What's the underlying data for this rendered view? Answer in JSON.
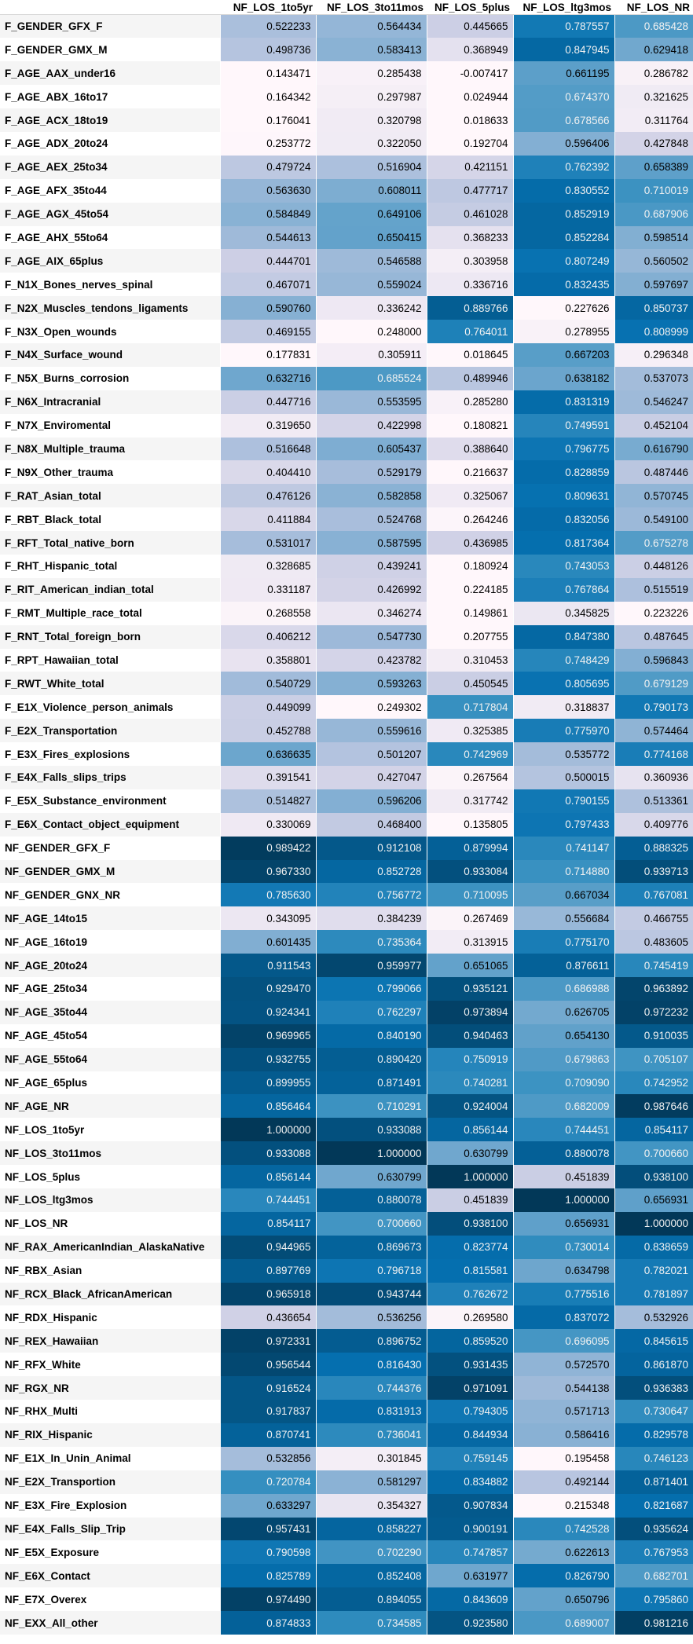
{
  "table": {
    "index_header": "",
    "columns": [
      "NF_LOS_1to5yr",
      "NF_LOS_3to11mos",
      "NF_LOS_5plus",
      "NF_LOS_ltg3mos",
      "NF_LOS_NR"
    ],
    "colormap": {
      "low": "#fff7fb",
      "high": "#023858",
      "vmin": 0.25,
      "vmax": 1.0
    },
    "rows": [
      {
        "label": "F_GENDER_GFX_F",
        "values": [
          "0.522233",
          "0.564434",
          "0.445665",
          "0.787557",
          "0.685428"
        ]
      },
      {
        "label": "F_GENDER_GMX_M",
        "values": [
          "0.498736",
          "0.583413",
          "0.368949",
          "0.847945",
          "0.629418"
        ]
      },
      {
        "label": "F_AGE_AAX_under16",
        "values": [
          "0.143471",
          "0.285438",
          "-0.007417",
          "0.661195",
          "0.286782"
        ]
      },
      {
        "label": "F_AGE_ABX_16to17",
        "values": [
          "0.164342",
          "0.297987",
          "0.024944",
          "0.674370",
          "0.321625"
        ]
      },
      {
        "label": "F_AGE_ACX_18to19",
        "values": [
          "0.176041",
          "0.320798",
          "0.018633",
          "0.678566",
          "0.311764"
        ]
      },
      {
        "label": "F_AGE_ADX_20to24",
        "values": [
          "0.253772",
          "0.322050",
          "0.192704",
          "0.596406",
          "0.427848"
        ]
      },
      {
        "label": "F_AGE_AEX_25to34",
        "values": [
          "0.479724",
          "0.516904",
          "0.421151",
          "0.762392",
          "0.658389"
        ]
      },
      {
        "label": "F_AGE_AFX_35to44",
        "values": [
          "0.563630",
          "0.608011",
          "0.477717",
          "0.830552",
          "0.710019"
        ]
      },
      {
        "label": "F_AGE_AGX_45to54",
        "values": [
          "0.584849",
          "0.649106",
          "0.461028",
          "0.852919",
          "0.687906"
        ]
      },
      {
        "label": "F_AGE_AHX_55to64",
        "values": [
          "0.544613",
          "0.650415",
          "0.368233",
          "0.852284",
          "0.598514"
        ]
      },
      {
        "label": "F_AGE_AIX_65plus",
        "values": [
          "0.444701",
          "0.546588",
          "0.303958",
          "0.807249",
          "0.560502"
        ]
      },
      {
        "label": "F_N1X_Bones_nerves_spinal",
        "values": [
          "0.467071",
          "0.559024",
          "0.336716",
          "0.832435",
          "0.597697"
        ]
      },
      {
        "label": "F_N2X_Muscles_tendons_ligaments",
        "values": [
          "0.590760",
          "0.336242",
          "0.889766",
          "0.227626",
          "0.850737"
        ]
      },
      {
        "label": "F_N3X_Open_wounds",
        "values": [
          "0.469155",
          "0.248000",
          "0.764011",
          "0.278955",
          "0.808999"
        ]
      },
      {
        "label": "F_N4X_Surface_wound",
        "values": [
          "0.177831",
          "0.305911",
          "0.018645",
          "0.667203",
          "0.296348"
        ]
      },
      {
        "label": "F_N5X_Burns_corrosion",
        "values": [
          "0.632716",
          "0.685524",
          "0.489946",
          "0.638182",
          "0.537073"
        ]
      },
      {
        "label": "F_N6X_Intracranial",
        "values": [
          "0.447716",
          "0.553595",
          "0.285280",
          "0.831319",
          "0.546247"
        ]
      },
      {
        "label": "F_N7X_Enviromental",
        "values": [
          "0.319650",
          "0.422998",
          "0.180821",
          "0.749591",
          "0.452104"
        ]
      },
      {
        "label": "F_N8X_Multiple_trauma",
        "values": [
          "0.516648",
          "0.605437",
          "0.388640",
          "0.796775",
          "0.616790"
        ]
      },
      {
        "label": "F_N9X_Other_trauma",
        "values": [
          "0.404410",
          "0.529179",
          "0.216637",
          "0.828859",
          "0.487446"
        ]
      },
      {
        "label": "F_RAT_Asian_total",
        "values": [
          "0.476126",
          "0.582858",
          "0.325067",
          "0.809631",
          "0.570745"
        ]
      },
      {
        "label": "F_RBT_Black_total",
        "values": [
          "0.411884",
          "0.524768",
          "0.264246",
          "0.832056",
          "0.549100"
        ]
      },
      {
        "label": "F_RFT_Total_native_born",
        "values": [
          "0.531017",
          "0.587595",
          "0.436985",
          "0.817364",
          "0.675278"
        ]
      },
      {
        "label": "F_RHT_Hispanic_total",
        "values": [
          "0.328685",
          "0.439241",
          "0.180924",
          "0.743053",
          "0.448126"
        ]
      },
      {
        "label": "F_RIT_American_indian_total",
        "values": [
          "0.331187",
          "0.426992",
          "0.224185",
          "0.767864",
          "0.515519"
        ]
      },
      {
        "label": "F_RMT_Multiple_race_total",
        "values": [
          "0.268558",
          "0.346274",
          "0.149861",
          "0.345825",
          "0.223226"
        ]
      },
      {
        "label": "F_RNT_Total_foreign_born",
        "values": [
          "0.406212",
          "0.547730",
          "0.207755",
          "0.847380",
          "0.487645"
        ]
      },
      {
        "label": "F_RPT_Hawaiian_total",
        "values": [
          "0.358801",
          "0.423782",
          "0.310453",
          "0.748429",
          "0.596843"
        ]
      },
      {
        "label": "F_RWT_White_total",
        "values": [
          "0.540729",
          "0.593263",
          "0.450545",
          "0.805695",
          "0.679129"
        ]
      },
      {
        "label": "F_E1X_Violence_person_animals",
        "values": [
          "0.449099",
          "0.249302",
          "0.717804",
          "0.318837",
          "0.790173"
        ]
      },
      {
        "label": "F_E2X_Transportation",
        "values": [
          "0.452788",
          "0.559616",
          "0.325385",
          "0.775970",
          "0.574464"
        ]
      },
      {
        "label": "F_E3X_Fires_explosions",
        "values": [
          "0.636635",
          "0.501207",
          "0.742969",
          "0.535772",
          "0.774168"
        ]
      },
      {
        "label": "F_E4X_Falls_slips_trips",
        "values": [
          "0.391541",
          "0.427047",
          "0.267564",
          "0.500015",
          "0.360936"
        ]
      },
      {
        "label": "F_E5X_Substance_environment",
        "values": [
          "0.514827",
          "0.596206",
          "0.317742",
          "0.790155",
          "0.513361"
        ]
      },
      {
        "label": "F_E6X_Contact_object_equipment",
        "values": [
          "0.330069",
          "0.468400",
          "0.135805",
          "0.797433",
          "0.409776"
        ]
      },
      {
        "label": "NF_GENDER_GFX_F",
        "values": [
          "0.989422",
          "0.912108",
          "0.879994",
          "0.741147",
          "0.888325"
        ]
      },
      {
        "label": "NF_GENDER_GMX_M",
        "values": [
          "0.967330",
          "0.852728",
          "0.933084",
          "0.714880",
          "0.939713"
        ]
      },
      {
        "label": "NF_GENDER_GNX_NR",
        "values": [
          "0.785630",
          "0.756772",
          "0.710095",
          "0.667034",
          "0.767081"
        ]
      },
      {
        "label": "NF_AGE_14to15",
        "values": [
          "0.343095",
          "0.384239",
          "0.267469",
          "0.556684",
          "0.466755"
        ]
      },
      {
        "label": "NF_AGE_16to19",
        "values": [
          "0.601435",
          "0.735364",
          "0.313915",
          "0.775170",
          "0.483605"
        ]
      },
      {
        "label": "NF_AGE_20to24",
        "values": [
          "0.911543",
          "0.959977",
          "0.651065",
          "0.876611",
          "0.745419"
        ]
      },
      {
        "label": "NF_AGE_25to34",
        "values": [
          "0.929470",
          "0.799066",
          "0.935121",
          "0.686988",
          "0.963892"
        ]
      },
      {
        "label": "NF_AGE_35to44",
        "values": [
          "0.924341",
          "0.762297",
          "0.973894",
          "0.626705",
          "0.972232"
        ]
      },
      {
        "label": "NF_AGE_45to54",
        "values": [
          "0.969965",
          "0.840190",
          "0.940463",
          "0.654130",
          "0.910035"
        ]
      },
      {
        "label": "NF_AGE_55to64",
        "values": [
          "0.932755",
          "0.890420",
          "0.750919",
          "0.679863",
          "0.705107"
        ]
      },
      {
        "label": "NF_AGE_65plus",
        "values": [
          "0.899955",
          "0.871491",
          "0.740281",
          "0.709090",
          "0.742952"
        ]
      },
      {
        "label": "NF_AGE_NR",
        "values": [
          "0.856464",
          "0.710291",
          "0.924004",
          "0.682009",
          "0.987646"
        ]
      },
      {
        "label": "NF_LOS_1to5yr",
        "values": [
          "1.000000",
          "0.933088",
          "0.856144",
          "0.744451",
          "0.854117"
        ]
      },
      {
        "label": "NF_LOS_3to11mos",
        "values": [
          "0.933088",
          "1.000000",
          "0.630799",
          "0.880078",
          "0.700660"
        ]
      },
      {
        "label": "NF_LOS_5plus",
        "values": [
          "0.856144",
          "0.630799",
          "1.000000",
          "0.451839",
          "0.938100"
        ]
      },
      {
        "label": "NF_LOS_ltg3mos",
        "values": [
          "0.744451",
          "0.880078",
          "0.451839",
          "1.000000",
          "0.656931"
        ]
      },
      {
        "label": "NF_LOS_NR",
        "values": [
          "0.854117",
          "0.700660",
          "0.938100",
          "0.656931",
          "1.000000"
        ]
      },
      {
        "label": "NF_RAX_AmericanIndian_AlaskaNative",
        "values": [
          "0.944965",
          "0.869673",
          "0.823774",
          "0.730014",
          "0.838659"
        ]
      },
      {
        "label": "NF_RBX_Asian",
        "values": [
          "0.897769",
          "0.796718",
          "0.815581",
          "0.634798",
          "0.782021"
        ]
      },
      {
        "label": "NF_RCX_Black_AfricanAmerican",
        "values": [
          "0.965918",
          "0.943744",
          "0.762672",
          "0.775516",
          "0.781897"
        ]
      },
      {
        "label": "NF_RDX_Hispanic",
        "values": [
          "0.436654",
          "0.536256",
          "0.269580",
          "0.837072",
          "0.532926"
        ]
      },
      {
        "label": "NF_REX_Hawaiian",
        "values": [
          "0.972331",
          "0.896752",
          "0.859520",
          "0.696095",
          "0.845615"
        ]
      },
      {
        "label": "NF_RFX_White",
        "values": [
          "0.956544",
          "0.816430",
          "0.931435",
          "0.572570",
          "0.861870"
        ]
      },
      {
        "label": "NF_RGX_NR",
        "values": [
          "0.916524",
          "0.744376",
          "0.971091",
          "0.544138",
          "0.936383"
        ]
      },
      {
        "label": "NF_RHX_Multi",
        "values": [
          "0.917837",
          "0.831913",
          "0.794305",
          "0.571713",
          "0.730647"
        ]
      },
      {
        "label": "NF_RIX_Hispanic",
        "values": [
          "0.870741",
          "0.736041",
          "0.844934",
          "0.586416",
          "0.829578"
        ]
      },
      {
        "label": "NF_E1X_In_Unin_Animal",
        "values": [
          "0.532856",
          "0.301845",
          "0.759145",
          "0.195458",
          "0.746123"
        ]
      },
      {
        "label": "NF_E2X_Transportion",
        "values": [
          "0.720784",
          "0.581297",
          "0.834882",
          "0.492144",
          "0.871401"
        ]
      },
      {
        "label": "NF_E3X_Fire_Explosion",
        "values": [
          "0.633297",
          "0.354327",
          "0.907834",
          "0.215348",
          "0.821687"
        ]
      },
      {
        "label": "NF_E4X_Falls_Slip_Trip",
        "values": [
          "0.957431",
          "0.858227",
          "0.900191",
          "0.742528",
          "0.935624"
        ]
      },
      {
        "label": "NF_E5X_Exposure",
        "values": [
          "0.790598",
          "0.702290",
          "0.747857",
          "0.622613",
          "0.767953"
        ]
      },
      {
        "label": "NF_E6X_Contact",
        "values": [
          "0.825789",
          "0.852408",
          "0.631977",
          "0.826790",
          "0.682701"
        ]
      },
      {
        "label": "NF_E7X_Overex",
        "values": [
          "0.974490",
          "0.894055",
          "0.843609",
          "0.650796",
          "0.795860"
        ]
      },
      {
        "label": "NF_EXX_All_other",
        "values": [
          "0.874833",
          "0.734585",
          "0.923580",
          "0.689007",
          "0.981216"
        ]
      }
    ]
  }
}
